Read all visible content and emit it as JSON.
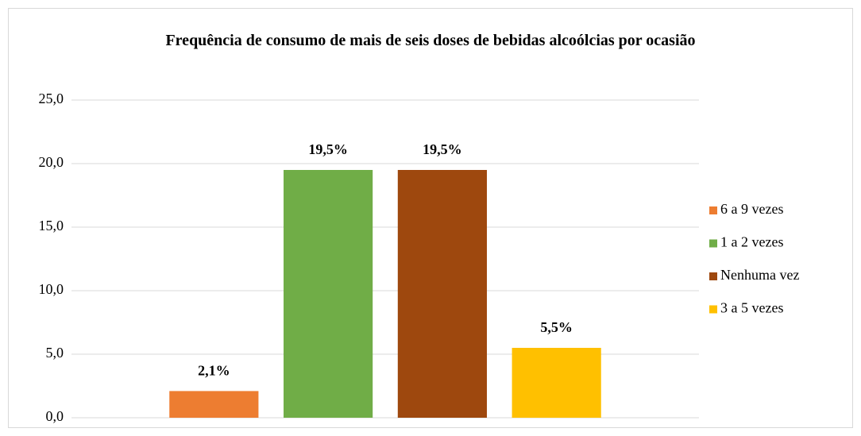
{
  "chart_data": {
    "type": "bar",
    "title": "Frequência de consumo de mais de seis doses de bebidas alcoólcias por ocasião",
    "categories": [
      null
    ],
    "series": [
      {
        "name": "6 a 9 vezes",
        "color": "#ed7d31",
        "values": [
          2.1
        ],
        "value_labels": [
          "2,1%"
        ]
      },
      {
        "name": "1 a 2 vezes",
        "color": "#70ad47",
        "values": [
          19.5
        ],
        "value_labels": [
          "19,5%"
        ]
      },
      {
        "name": "Nenhuma vez",
        "color": "#9e480e",
        "values": [
          19.5
        ],
        "value_labels": [
          "19,5%"
        ]
      },
      {
        "name": "3 a 5 vezes",
        "color": "#ffc000",
        "values": [
          5.5
        ],
        "value_labels": [
          "5,5%"
        ]
      }
    ],
    "ylim": [
      0,
      25
    ],
    "yticks": [
      {
        "value": 0,
        "label": "0,0"
      },
      {
        "value": 5,
        "label": "5,0"
      },
      {
        "value": 10,
        "label": "10,0"
      },
      {
        "value": 15,
        "label": "15,0"
      },
      {
        "value": 20,
        "label": "20,0"
      },
      {
        "value": 25,
        "label": "25,0"
      }
    ],
    "grid": true,
    "legend": "right"
  }
}
